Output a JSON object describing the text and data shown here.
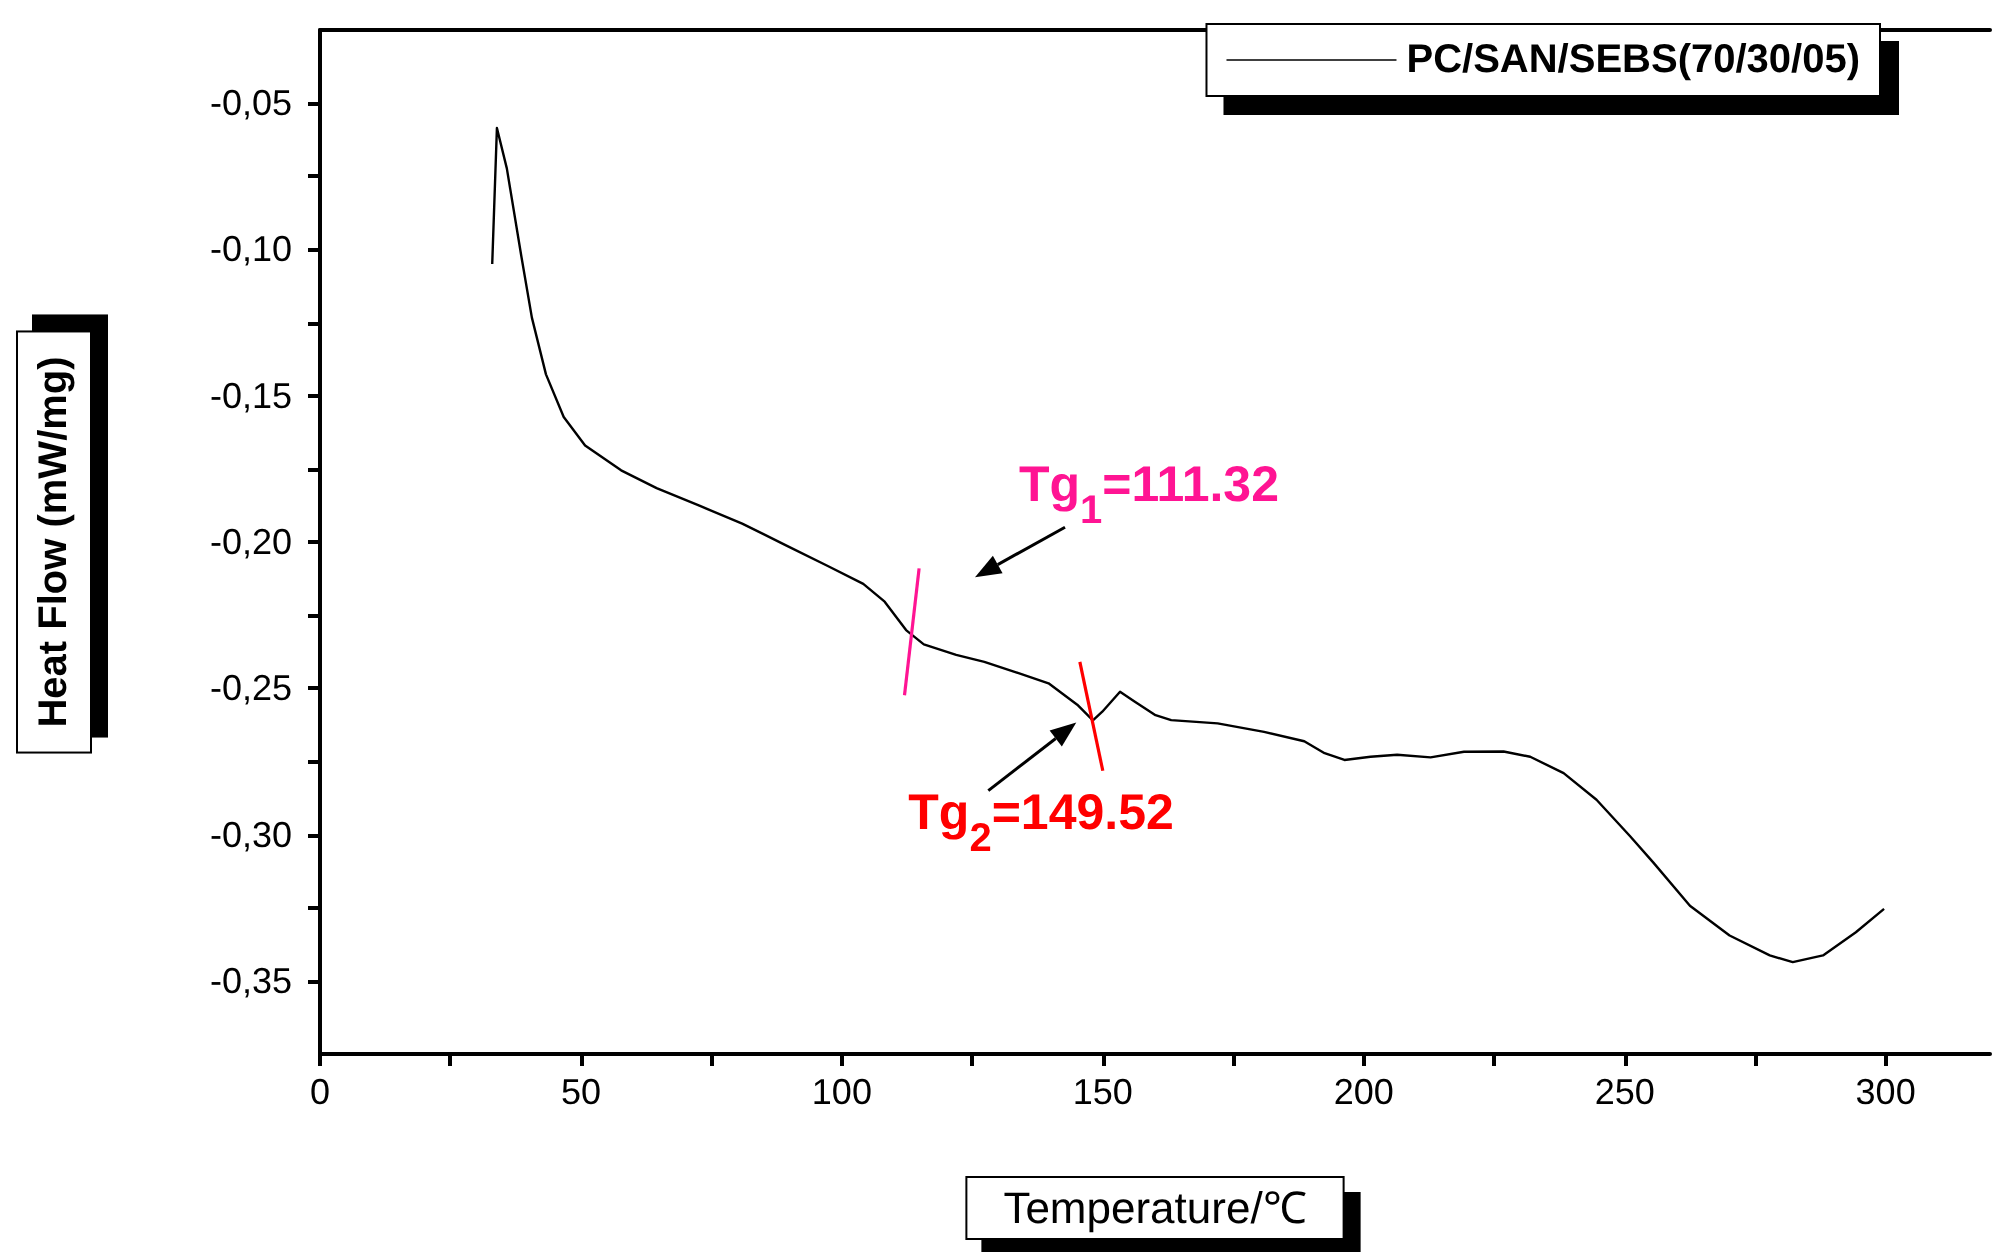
{
  "chart_data": {
    "type": "line",
    "xlabel": "Temperature/℃",
    "ylabel": "Heat Flow (mW/mg)",
    "xlim": [
      0,
      320
    ],
    "xticks": [
      0,
      {
        "value": 25,
        "label": null
      },
      50,
      {
        "value": 75,
        "label": null
      },
      100,
      {
        "value": 125,
        "label": null
      },
      150,
      {
        "value": 175,
        "label": null
      },
      200,
      {
        "value": 225,
        "label": null
      },
      250,
      {
        "value": 275,
        "label": null
      },
      300
    ],
    "ylim": [
      -0.375,
      -0.025
    ],
    "yticks": [
      {
        "value": -0.35,
        "label": "-0,35"
      },
      {
        "value": -0.325,
        "label": null
      },
      {
        "value": -0.3,
        "label": "-0,30"
      },
      {
        "value": -0.275,
        "label": null
      },
      {
        "value": -0.25,
        "label": "-0,25"
      },
      {
        "value": -0.225,
        "label": null
      },
      {
        "value": -0.2,
        "label": "-0,20"
      },
      {
        "value": -0.175,
        "label": null
      },
      {
        "value": -0.15,
        "label": "-0,15"
      },
      {
        "value": -0.125,
        "label": null
      },
      {
        "value": -0.1,
        "label": "-0,10"
      },
      {
        "value": -0.075,
        "label": null
      },
      {
        "value": -0.05,
        "label": "-0,05"
      }
    ],
    "grid": false,
    "legend": "top right",
    "marker": "none",
    "series": [
      {
        "name": "PC/SAN/SEBS(70/30/05)",
        "color": "#000000",
        "x": [
          33,
          33.9,
          35.8,
          38.5,
          40.6,
          43.3,
          46.7,
          50.8,
          57.7,
          64.5,
          72.7,
          80.9,
          89.1,
          97.3,
          104.1,
          108.2,
          112.3,
          115.7,
          121.9,
          127.3,
          132.8,
          139.6,
          145.1,
          148.1,
          149.9,
          153.3,
          156,
          160.1,
          163.1,
          172,
          180.9,
          188.6,
          192.5,
          196.3,
          201.3,
          206.4,
          212.8,
          219.2,
          226.8,
          231.9,
          238.3,
          244.6,
          251,
          255.5,
          262.5,
          270.1,
          277.8,
          282.2,
          288,
          294.3,
          299.7
        ],
        "values": [
          -0.105,
          -0.0585,
          -0.0723,
          -0.1015,
          -0.1233,
          -0.1427,
          -0.1573,
          -0.167,
          -0.1755,
          -0.1816,
          -0.1876,
          -0.1937,
          -0.201,
          -0.2082,
          -0.2143,
          -0.2204,
          -0.2301,
          -0.235,
          -0.2386,
          -0.241,
          -0.2442,
          -0.2483,
          -0.2556,
          -0.261,
          -0.258,
          -0.2512,
          -0.2544,
          -0.2592,
          -0.2609,
          -0.262,
          -0.2649,
          -0.2681,
          -0.2722,
          -0.2745,
          -0.2734,
          -0.2727,
          -0.2736,
          -0.2717,
          -0.2716,
          -0.2734,
          -0.279,
          -0.2881,
          -0.3005,
          -0.3096,
          -0.3243,
          -0.3345,
          -0.3413,
          -0.3436,
          -0.3413,
          -0.3334,
          -0.3254
        ]
      },
      {
        "color": "#ff1493",
        "x": [
          114.8,
          112.0
        ],
        "values": [
          -0.209,
          -0.2524
        ]
      },
      {
        "color": "#ff0000",
        "x": [
          145.6,
          150.0
        ],
        "values": [
          -0.241,
          -0.2782
        ]
      }
    ],
    "annotations": [
      "Tg$_{1}$=111.32",
      {
        "text": "Tg$_{2}$=149.52",
        "x": 149.52,
        "y": -0.259
      }
    ]
  }
}
